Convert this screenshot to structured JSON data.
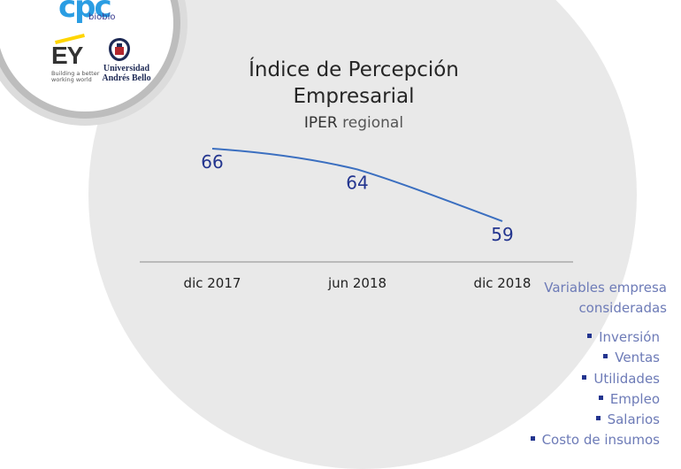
{
  "logos": {
    "cpc_name": "cpc",
    "cpc_sub": "biobío",
    "ey_name": "EY",
    "ey_tagline": "Building a better working world",
    "unab_line1": "Universidad",
    "unab_line2": "Andrés Bello"
  },
  "header": {
    "title_line1": "Índice de Percepción",
    "title_line2": "Empresarial",
    "subtitle_bold": "IPER",
    "subtitle_rest": "regional"
  },
  "chart_data": {
    "type": "line",
    "categories": [
      "dic 2017",
      "jun 2018",
      "dic 2018"
    ],
    "series": [
      {
        "values": [
          66,
          64,
          59
        ]
      }
    ],
    "title": "Índice de Percepción Empresarial",
    "subtitle": "IPER regional",
    "data_labels": [
      "66",
      "64",
      "59"
    ],
    "ylim": [
      55,
      68
    ],
    "grid": false,
    "line_color": "#3b6fc0",
    "label_color": "#23358f"
  },
  "sidebar": {
    "title": "Variables empresa consideradas",
    "items": [
      {
        "label": "Inversión"
      },
      {
        "label": "Ventas"
      },
      {
        "label": "Utilidades"
      },
      {
        "label": "Empleo"
      },
      {
        "label": "Salarios"
      },
      {
        "label": "Costo de insumos"
      }
    ]
  },
  "colors": {
    "circle": "#e9e9e9",
    "accent_blue": "#23358f",
    "side_text": "#6d7bb7"
  }
}
